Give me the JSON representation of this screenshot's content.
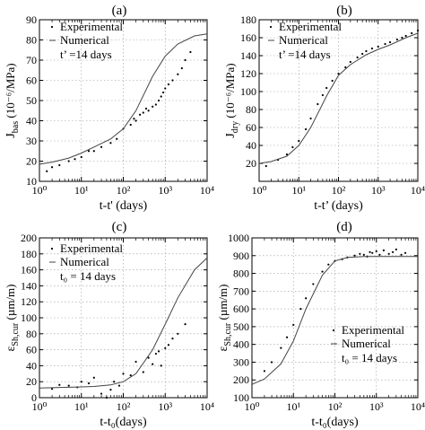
{
  "chart_data": [
    {
      "type": "scatter",
      "panel": "(a)",
      "ylabel_main": "J",
      "ylabel_sub": "bas",
      "ylabel_unit": " (10⁻⁶/MPa)",
      "xlabel": "t-t' (days)",
      "xscale": "log",
      "xlim": [
        1,
        10000
      ],
      "ylim": [
        10,
        90
      ],
      "xticks": [
        "10⁰",
        "10¹",
        "10²",
        "10³",
        "10⁴"
      ],
      "yticks": [
        10,
        20,
        30,
        40,
        50,
        60,
        70,
        80,
        90
      ],
      "grid": true,
      "legend_position": "top-left",
      "legend": [
        "Experimental",
        "Numerical",
        "t’ =14 days"
      ],
      "series": [
        {
          "name": "Experimental",
          "style": "points",
          "x": [
            1.5,
            2,
            3,
            5,
            7,
            10,
            15,
            20,
            30,
            50,
            70,
            100,
            150,
            180,
            200,
            250,
            300,
            350,
            400,
            500,
            600,
            700,
            800,
            900,
            1000,
            1200,
            1500,
            2000,
            2500,
            3000,
            4000
          ],
          "y": [
            15,
            17,
            18,
            20,
            21,
            22,
            25,
            25,
            27,
            29,
            31,
            36,
            38,
            41,
            40,
            43,
            44,
            46,
            45,
            47,
            48,
            50,
            52,
            54,
            56,
            58,
            60,
            63,
            66,
            70,
            74
          ]
        },
        {
          "name": "Numerical",
          "style": "line",
          "x": [
            1,
            2,
            5,
            10,
            20,
            50,
            100,
            200,
            500,
            1000,
            2000,
            5000,
            10000
          ],
          "y": [
            18.5,
            19.5,
            21.5,
            24,
            27,
            31,
            36,
            45,
            62,
            72,
            78,
            82,
            83
          ]
        }
      ]
    },
    {
      "type": "scatter",
      "panel": "(b)",
      "ylabel_main": "J",
      "ylabel_sub": "dry",
      "ylabel_unit": " (10⁻⁶/MPa)",
      "xlabel": "t-t’ (days)",
      "xscale": "log",
      "xlim": [
        1,
        10000
      ],
      "ylim": [
        0,
        180
      ],
      "xticks": [
        "10⁰",
        "10¹",
        "10²",
        "10³",
        "10⁴"
      ],
      "yticks": [
        20,
        40,
        60,
        80,
        100,
        120,
        140,
        160,
        180
      ],
      "grid": true,
      "legend_position": "top-left",
      "legend": [
        "Experimental",
        "Numerical",
        "t’ =14 days"
      ],
      "series": [
        {
          "name": "Experimental",
          "style": "points",
          "x": [
            1.5,
            3,
            5,
            7,
            10,
            15,
            20,
            30,
            40,
            50,
            70,
            100,
            150,
            200,
            300,
            400,
            500,
            700,
            1000,
            1500,
            2000,
            3000,
            4000,
            5000,
            7000,
            10000
          ],
          "y": [
            17,
            24,
            30,
            38,
            45,
            58,
            70,
            86,
            96,
            104,
            112,
            120,
            127,
            133,
            138,
            142,
            145,
            148,
            150,
            153,
            155,
            158,
            160,
            162,
            165,
            168
          ]
        },
        {
          "name": "Numerical",
          "style": "line",
          "x": [
            1,
            2,
            5,
            10,
            20,
            50,
            100,
            200,
            500,
            1000,
            2000,
            5000,
            10000
          ],
          "y": [
            20,
            22,
            28,
            40,
            60,
            95,
            118,
            130,
            141,
            147,
            152,
            160,
            165
          ]
        }
      ]
    },
    {
      "type": "scatter",
      "panel": "(c)",
      "ylabel_main": "ε",
      "ylabel_sub": "Sh,cur",
      "ylabel_unit": " (µm/m)",
      "xlabel": "t-t₀(days)",
      "xscale": "log",
      "xlim": [
        1,
        10000
      ],
      "ylim": [
        0,
        200
      ],
      "xticks": [
        "10⁰",
        "10¹",
        "10²",
        "10³",
        "10⁴"
      ],
      "yticks": [
        0,
        20,
        40,
        60,
        80,
        100,
        120,
        140,
        160,
        180,
        200
      ],
      "grid": true,
      "legend_position": "top-left",
      "legend": [
        "Experimental",
        "Numerical",
        "t₀ = 14 days"
      ],
      "series": [
        {
          "name": "Experimental",
          "style": "points",
          "x": [
            2,
            3,
            5,
            8,
            10,
            15,
            20,
            30,
            40,
            50,
            60,
            80,
            100,
            150,
            200,
            300,
            400,
            500,
            600,
            700,
            800,
            1000,
            1200,
            1500,
            2000,
            3000
          ],
          "y": [
            11,
            16,
            15,
            13,
            20,
            18,
            25,
            5,
            0,
            10,
            20,
            15,
            30,
            28,
            45,
            32,
            50,
            42,
            55,
            58,
            40,
            62,
            66,
            74,
            80,
            92
          ]
        },
        {
          "name": "Numerical",
          "style": "line",
          "x": [
            1,
            2,
            5,
            10,
            20,
            50,
            100,
            200,
            500,
            1000,
            2000,
            5000,
            10000
          ],
          "y": [
            12,
            12.5,
            13,
            13.5,
            14,
            16,
            20,
            30,
            60,
            92,
            125,
            160,
            175
          ]
        }
      ]
    },
    {
      "type": "scatter",
      "panel": "(d)",
      "ylabel_main": "ε",
      "ylabel_sub": "Sh,cur",
      "ylabel_unit": " (µm/m)",
      "xlabel": "t-t₀(days)",
      "xscale": "log",
      "xlim": [
        1,
        10000
      ],
      "ylim": [
        100,
        1000
      ],
      "xticks": [
        "10⁰",
        "10¹",
        "10²",
        "10³",
        "10⁴"
      ],
      "yticks": [
        100,
        200,
        300,
        400,
        500,
        600,
        700,
        800,
        900,
        1000
      ],
      "grid": true,
      "legend_position": "center-right",
      "legend": [
        "Experimental",
        "Numerical",
        "t₀ = 14 days"
      ],
      "series": [
        {
          "name": "Experimental",
          "style": "points",
          "x": [
            2,
            3,
            5,
            7,
            10,
            15,
            20,
            30,
            50,
            70,
            100,
            150,
            200,
            300,
            400,
            500,
            600,
            700,
            800,
            1000,
            1200,
            1500,
            2000,
            2500,
            3000,
            4000,
            5000
          ],
          "y": [
            250,
            300,
            380,
            440,
            510,
            600,
            660,
            740,
            810,
            850,
            870,
            880,
            890,
            900,
            910,
            905,
            895,
            920,
            915,
            925,
            905,
            930,
            910,
            920,
            935,
            905,
            915
          ]
        },
        {
          "name": "Numerical",
          "style": "line",
          "x": [
            1,
            2,
            5,
            10,
            20,
            50,
            100,
            200,
            500,
            1000,
            2000,
            5000,
            10000
          ],
          "y": [
            175,
            205,
            290,
            420,
            600,
            790,
            870,
            890,
            895,
            895,
            895,
            895,
            895
          ]
        }
      ]
    }
  ]
}
